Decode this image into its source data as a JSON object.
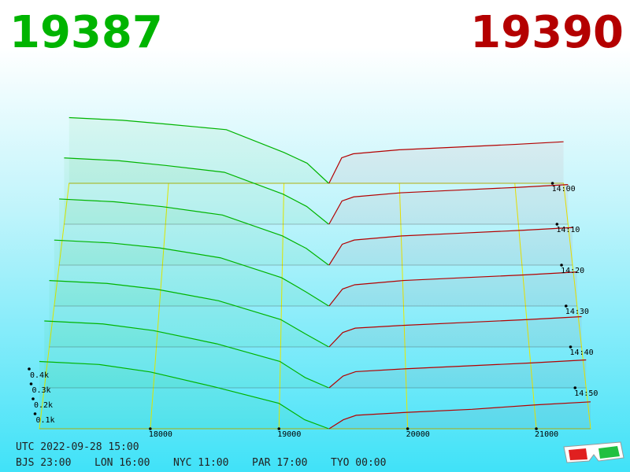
{
  "best_bid": "19387",
  "best_ask": "19390",
  "chart_data": {
    "type": "depth3d",
    "xlim": [
      17138,
      21422
    ],
    "xticks": [
      18000,
      19000,
      20000,
      21000
    ],
    "yticks": [
      {
        "value": 100,
        "label": "0.1k"
      },
      {
        "value": 200,
        "label": "0.2k"
      },
      {
        "value": 300,
        "label": "0.3k"
      },
      {
        "value": 400,
        "label": "0.4k"
      }
    ],
    "zlim": [
      0,
      60
    ],
    "zticks": [
      {
        "value": 0,
        "label": "14:00"
      },
      {
        "value": 10,
        "label": "14:10"
      },
      {
        "value": 20,
        "label": "14:20"
      },
      {
        "value": 30,
        "label": "14:30"
      },
      {
        "value": 40,
        "label": "14:40"
      },
      {
        "value": 50,
        "label": "14:50"
      }
    ],
    "bid_color": "#00b400",
    "ask_color": "#b40000",
    "grid_color": "#e8e800",
    "bid_prices": [
      17138,
      17600,
      18000,
      18500,
      19000,
      19200,
      19387
    ],
    "ask_prices": [
      19390,
      19500,
      19600,
      20000,
      20500,
      21000,
      21422
    ],
    "snapshots": [
      {
        "t": 0,
        "bids": [
          490,
          470,
          440,
          400,
          230,
          150,
          0
        ],
        "asks": [
          0,
          190,
          220,
          250,
          270,
          290,
          310
        ]
      },
      {
        "t": 10,
        "bids": [
          485,
          465,
          430,
          380,
          220,
          130,
          0
        ],
        "asks": [
          0,
          170,
          200,
          230,
          250,
          270,
          290
        ]
      },
      {
        "t": 20,
        "bids": [
          475,
          455,
          420,
          360,
          210,
          120,
          0
        ],
        "asks": [
          0,
          150,
          180,
          210,
          230,
          250,
          270
        ]
      },
      {
        "t": 30,
        "bids": [
          465,
          445,
          410,
          340,
          200,
          100,
          0
        ],
        "asks": [
          0,
          120,
          150,
          180,
          200,
          220,
          240
        ]
      },
      {
        "t": 40,
        "bids": [
          460,
          440,
          400,
          320,
          190,
          90,
          0
        ],
        "asks": [
          0,
          100,
          130,
          150,
          170,
          190,
          210
        ]
      },
      {
        "t": 50,
        "bids": [
          455,
          435,
          390,
          300,
          180,
          70,
          0
        ],
        "asks": [
          0,
          80,
          110,
          130,
          150,
          170,
          190
        ]
      },
      {
        "t": 60,
        "bids": [
          450,
          430,
          380,
          280,
          170,
          60,
          0
        ],
        "asks": [
          0,
          60,
          90,
          110,
          130,
          160,
          180
        ]
      }
    ]
  },
  "footer": {
    "utc": "UTC 2022-09-28 15:00",
    "clocks": [
      "BJS 23:00",
      "LON 16:00",
      "NYC 11:00",
      "PAR 17:00",
      "TYO 00:00"
    ]
  }
}
